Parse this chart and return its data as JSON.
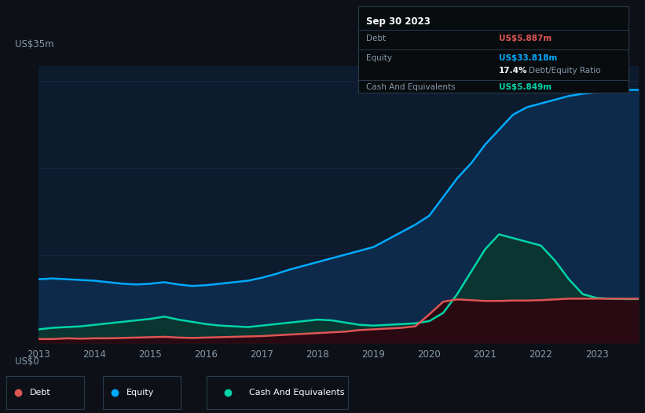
{
  "background_color": "#0d1117",
  "plot_bg_color": "#0d1b2e",
  "ylabel_text": "US$35m",
  "ylabel_zero": "US$0",
  "x_ticks": [
    2013,
    2014,
    2015,
    2016,
    2017,
    2018,
    2019,
    2020,
    2021,
    2022,
    2023
  ],
  "grid_color": "#1a2e47",
  "tooltip": {
    "date": "Sep 30 2023",
    "debt_label": "Debt",
    "debt_value": "US$5.887m",
    "equity_label": "Equity",
    "equity_value": "US$33.818m",
    "ratio": "17.4%",
    "ratio_label": "Debt/Equity Ratio",
    "cash_label": "Cash And Equivalents",
    "cash_value": "US$5.849m"
  },
  "equity_color": "#00aaff",
  "equity_fill": "#0d2a4a",
  "debt_color": "#e05555",
  "debt_fill": "#2a0a12",
  "cash_color": "#00d4a8",
  "cash_fill": "#0a3530",
  "legend_items": [
    "Debt",
    "Equity",
    "Cash And Equivalents"
  ],
  "ylim_max": 37,
  "years": [
    2013.0,
    2013.25,
    2013.5,
    2013.75,
    2014.0,
    2014.25,
    2014.5,
    2014.75,
    2015.0,
    2015.25,
    2015.5,
    2015.75,
    2016.0,
    2016.25,
    2016.5,
    2016.75,
    2017.0,
    2017.25,
    2017.5,
    2017.75,
    2018.0,
    2018.25,
    2018.5,
    2018.75,
    2019.0,
    2019.25,
    2019.5,
    2019.75,
    2020.0,
    2020.25,
    2020.5,
    2020.75,
    2021.0,
    2021.25,
    2021.5,
    2021.75,
    2022.0,
    2022.25,
    2022.5,
    2022.75,
    2023.0,
    2023.25,
    2023.5,
    2023.75
  ],
  "equity": [
    8.5,
    8.6,
    8.5,
    8.4,
    8.3,
    8.1,
    7.9,
    7.8,
    7.9,
    8.1,
    7.8,
    7.6,
    7.7,
    7.9,
    8.1,
    8.3,
    8.7,
    9.2,
    9.8,
    10.3,
    10.8,
    11.3,
    11.8,
    12.3,
    12.8,
    13.8,
    14.8,
    15.8,
    17.0,
    19.5,
    22.0,
    24.0,
    26.5,
    28.5,
    30.5,
    31.5,
    32.0,
    32.5,
    33.0,
    33.3,
    33.5,
    33.7,
    33.818,
    33.818
  ],
  "debt": [
    0.5,
    0.5,
    0.6,
    0.55,
    0.6,
    0.6,
    0.65,
    0.7,
    0.75,
    0.8,
    0.7,
    0.65,
    0.7,
    0.75,
    0.8,
    0.85,
    0.9,
    1.0,
    1.1,
    1.2,
    1.3,
    1.4,
    1.5,
    1.7,
    1.8,
    1.9,
    2.0,
    2.2,
    3.8,
    5.5,
    5.8,
    5.7,
    5.6,
    5.6,
    5.65,
    5.65,
    5.7,
    5.8,
    5.9,
    5.9,
    5.9,
    5.9,
    5.887,
    5.887
  ],
  "cash": [
    1.8,
    2.0,
    2.1,
    2.2,
    2.4,
    2.6,
    2.8,
    3.0,
    3.2,
    3.5,
    3.1,
    2.8,
    2.5,
    2.3,
    2.2,
    2.1,
    2.3,
    2.5,
    2.7,
    2.9,
    3.1,
    3.0,
    2.7,
    2.4,
    2.3,
    2.4,
    2.5,
    2.6,
    2.9,
    4.0,
    6.5,
    9.5,
    12.5,
    14.5,
    14.0,
    13.5,
    13.0,
    11.0,
    8.5,
    6.5,
    6.0,
    5.9,
    5.849,
    5.849
  ]
}
